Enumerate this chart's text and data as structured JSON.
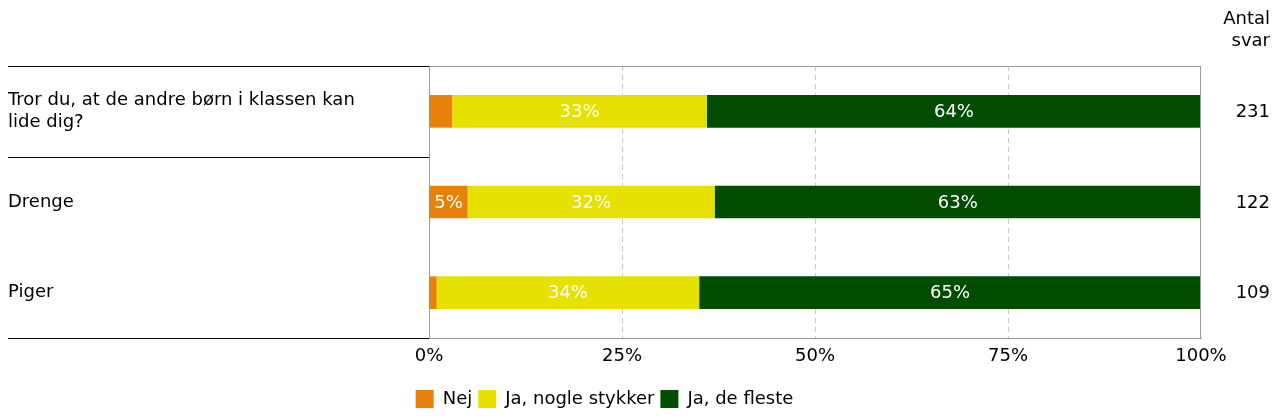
{
  "chart_data": {
    "type": "bar",
    "orientation": "horizontal",
    "stacked": true,
    "categories": [
      "Tror du, at de andre børn i klassen kan lide dig?",
      "Drenge",
      "Piger"
    ],
    "series": [
      {
        "name": "Nej",
        "color": "#e8800c",
        "values": [
          3,
          5,
          1
        ],
        "value_labels": [
          null,
          "5%",
          null
        ]
      },
      {
        "name": "Ja, nogle stykker",
        "color": "#e6e100",
        "values": [
          33,
          32,
          34
        ],
        "value_labels": [
          "33%",
          "32%",
          "34%"
        ]
      },
      {
        "name": "Ja, de fleste",
        "color": "#004d00",
        "values": [
          64,
          63,
          65
        ],
        "value_labels": [
          "64%",
          "63%",
          "65%"
        ]
      }
    ],
    "xlim": [
      0,
      100
    ],
    "xticks": [
      {
        "value": 0,
        "label": "0%"
      },
      {
        "value": 25,
        "label": "25%"
      },
      {
        "value": 50,
        "label": "50%"
      },
      {
        "value": 75,
        "label": "75%"
      },
      {
        "value": 100,
        "label": "100%"
      }
    ],
    "grid": "x",
    "legend": "bottom",
    "annotations": [
      "Antal svar",
      "231",
      "122",
      "109"
    ]
  }
}
